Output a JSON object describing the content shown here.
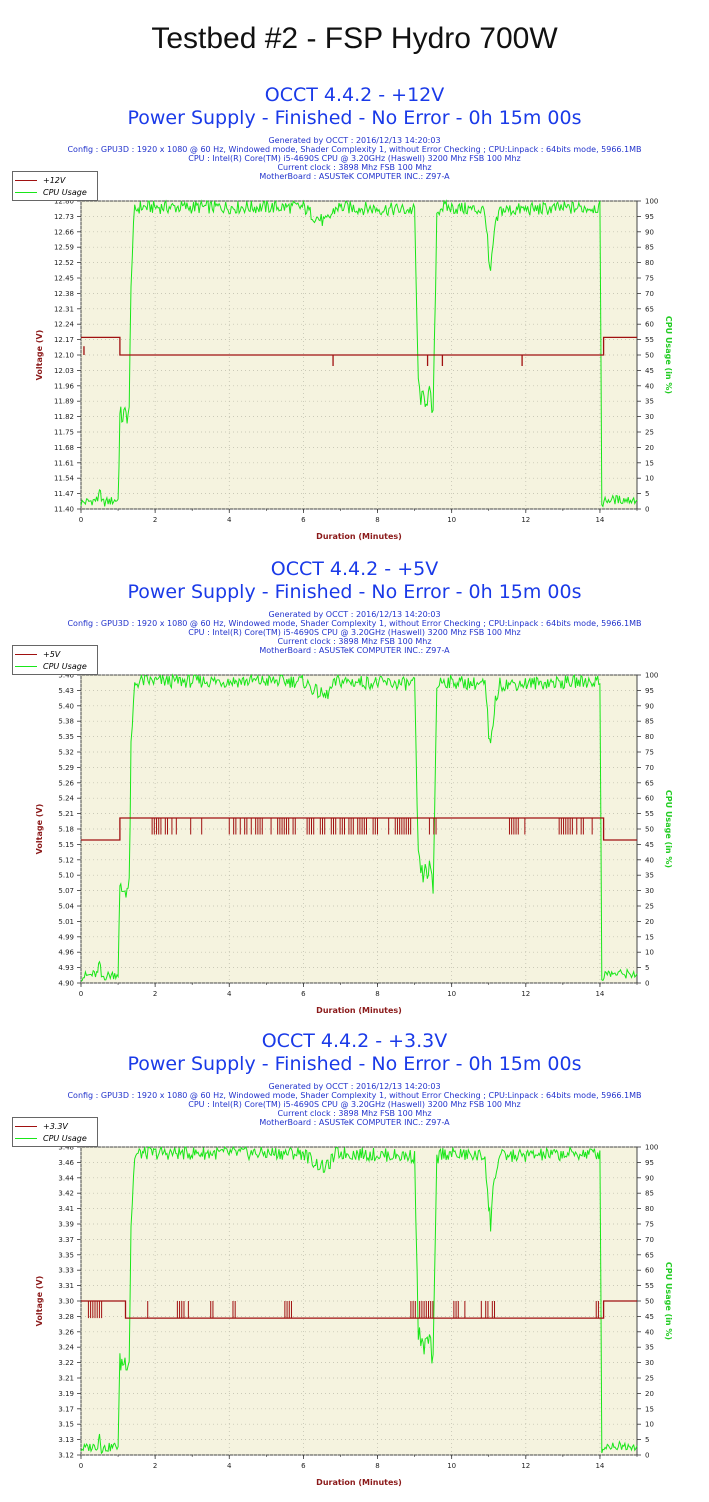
{
  "page_title": "Testbed #2 - FSP Hydro 700W",
  "colors": {
    "voltage": "#a01010",
    "cpu": "#19e619",
    "plot_bg": "#f5f3df",
    "title": "#1a3ae8",
    "info": "#2233cc"
  },
  "chart_data": [
    {
      "type": "line",
      "title": "OCCT 4.4.2 - +12V",
      "subtitle": "Power Supply - Finished - No Error - 0h 15m 00s",
      "info": [
        "Generated by OCCT : 2016/12/13 14:20:03",
        "Config : GPU3D : 1920 x 1080 @ 60 Hz, Windowed mode, Shader Complexity 1, without Error Checking ; CPU:Linpack : 64bits mode, 5966.1MB",
        "CPU : Intel(R) Core(TM) i5-4690S CPU @ 3.20GHz (Haswell) 3200 Mhz FSB 100 Mhz",
        "Current clock : 3898 Mhz FSB 100 Mhz",
        "MotherBoard : ASUSTeK COMPUTER INC.: Z97-A"
      ],
      "legend": [
        "+12V",
        "CPU Usage"
      ],
      "xlabel": "Duration (Minutes)",
      "ylabel": "Voltage (V)",
      "y2label": "CPU Usage (in %)",
      "xlim": [
        0,
        15
      ],
      "xticks": [
        "0",
        "2",
        "4",
        "6",
        "8",
        "10",
        "12",
        "14"
      ],
      "ylim": [
        11.4,
        12.8
      ],
      "yticks": [
        "12.80",
        "12.73",
        "12.66",
        "12.59",
        "12.52",
        "12.45",
        "12.38",
        "12.31",
        "12.24",
        "12.17",
        "12.10",
        "12.03",
        "11.96",
        "11.89",
        "11.82",
        "11.75",
        "11.68",
        "11.61",
        "11.54",
        "11.47",
        "11.40"
      ],
      "y2lim": [
        0,
        100
      ],
      "y2ticks": [
        "100",
        "95",
        "90",
        "85",
        "80",
        "75",
        "70",
        "65",
        "60",
        "55",
        "50",
        "45",
        "40",
        "35",
        "30",
        "25",
        "20",
        "15",
        "10",
        "5",
        "0"
      ],
      "series": [
        {
          "name": "+12V",
          "axis": "left",
          "x": [
            0,
            1.05,
            1.05,
            14.1,
            14.1,
            15
          ],
          "y": [
            12.18,
            12.18,
            12.1,
            12.1,
            12.18,
            12.18
          ],
          "spikes": [
            {
              "x": 0.08,
              "y": 12.14
            },
            {
              "x": 6.8,
              "y": 12.05
            },
            {
              "x": 9.35,
              "y": 12.05
            },
            {
              "x": 9.75,
              "y": 12.05
            },
            {
              "x": 11.9,
              "y": 12.05
            }
          ]
        },
        {
          "name": "CPU Usage",
          "axis": "right",
          "x": [
            0,
            0.45,
            0.5,
            0.55,
            1.0,
            1.05,
            1.1,
            1.3,
            1.35,
            1.45,
            1.6,
            6.0,
            6.3,
            6.6,
            6.9,
            9.0,
            9.1,
            9.2,
            9.4,
            9.5,
            9.6,
            9.7,
            10.9,
            11.0,
            11.05,
            11.15,
            11.3,
            14.0,
            14.05,
            14.2,
            15
          ],
          "y": [
            2,
            3,
            7,
            2,
            3,
            30,
            30,
            31,
            75,
            97,
            98,
            98,
            95,
            93,
            98,
            97,
            40,
            35,
            37,
            30,
            96,
            98,
            97,
            80,
            75,
            90,
            97,
            98,
            2,
            3,
            3
          ]
        }
      ]
    },
    {
      "type": "line",
      "title": "OCCT 4.4.2 - +5V",
      "subtitle": "Power Supply - Finished - No Error - 0h 15m 00s",
      "info": [
        "Generated by OCCT : 2016/12/13 14:20:03",
        "Config : GPU3D : 1920 x 1080 @ 60 Hz, Windowed mode, Shader Complexity 1, without Error Checking ; CPU:Linpack : 64bits mode, 5966.1MB",
        "CPU : Intel(R) Core(TM) i5-4690S CPU @ 3.20GHz (Haswell) 3200 Mhz FSB 100 Mhz",
        "Current clock : 3898 Mhz FSB 100 Mhz",
        "MotherBoard : ASUSTeK COMPUTER INC.: Z97-A"
      ],
      "legend": [
        "+5V",
        "CPU Usage"
      ],
      "xlabel": "Duration (Minutes)",
      "ylabel": "Voltage (V)",
      "y2label": "CPU Usage (in %)",
      "xlim": [
        0,
        15
      ],
      "xticks": [
        "0",
        "2",
        "4",
        "6",
        "8",
        "10",
        "12",
        "14"
      ],
      "ylim": [
        4.9,
        5.46
      ],
      "yticks": [
        "5.46",
        "5.43",
        "5.40",
        "5.38",
        "5.35",
        "5.32",
        "5.29",
        "5.26",
        "5.24",
        "5.21",
        "5.18",
        "5.15",
        "5.12",
        "5.10",
        "5.07",
        "5.04",
        "5.01",
        "4.99",
        "4.96",
        "4.93",
        "4.90"
      ],
      "y2lim": [
        0,
        100
      ],
      "y2ticks": [
        "100",
        "95",
        "90",
        "85",
        "80",
        "75",
        "70",
        "65",
        "60",
        "55",
        "50",
        "45",
        "40",
        "35",
        "30",
        "25",
        "20",
        "15",
        "10",
        "5",
        "0"
      ],
      "series": [
        {
          "name": "+5V",
          "axis": "left",
          "x": [
            0,
            1.05,
            1.05,
            14.1,
            14.1,
            15
          ],
          "y": [
            5.16,
            5.16,
            5.2,
            5.2,
            5.16,
            5.16
          ],
          "toggle": {
            "low": 5.17,
            "high": 5.2,
            "ranges": [
              [
                1.8,
                2.6
              ],
              [
                2.9,
                3.3
              ],
              [
                4.0,
                5.8
              ],
              [
                6.1,
                8.0
              ],
              [
                8.3,
                8.9
              ],
              [
                9.4,
                9.8
              ],
              [
                11.5,
                12.1
              ],
              [
                12.9,
                13.8
              ]
            ]
          }
        },
        {
          "name": "CPU Usage",
          "axis": "right",
          "x": [
            0,
            0.45,
            0.5,
            0.55,
            1.0,
            1.05,
            1.1,
            1.3,
            1.35,
            1.45,
            1.6,
            6.0,
            6.3,
            6.6,
            6.9,
            9.0,
            9.1,
            9.2,
            9.4,
            9.5,
            9.6,
            9.7,
            10.9,
            11.0,
            11.05,
            11.15,
            11.3,
            14.0,
            14.05,
            14.2,
            15
          ],
          "y": [
            2,
            3,
            7,
            2,
            3,
            30,
            30,
            31,
            75,
            97,
            98,
            98,
            95,
            93,
            98,
            97,
            40,
            35,
            37,
            30,
            96,
            98,
            97,
            80,
            75,
            90,
            97,
            98,
            2,
            3,
            3
          ]
        }
      ]
    },
    {
      "type": "line",
      "title": "OCCT 4.4.2 - +3.3V",
      "subtitle": "Power Supply - Finished - No Error - 0h 15m 00s",
      "info": [
        "Generated by OCCT : 2016/12/13 14:20:03",
        "Config : GPU3D : 1920 x 1080 @ 60 Hz, Windowed mode, Shader Complexity 1, without Error Checking ; CPU:Linpack : 64bits mode, 5966.1MB",
        "CPU : Intel(R) Core(TM) i5-4690S CPU @ 3.20GHz (Haswell) 3200 Mhz FSB 100 Mhz",
        "Current clock : 3898 Mhz FSB 100 Mhz",
        "MotherBoard : ASUSTeK COMPUTER INC.: Z97-A"
      ],
      "legend": [
        "+3.3V",
        "CPU Usage"
      ],
      "xlabel": "Duration (Minutes)",
      "ylabel": "Voltage (V)",
      "y2label": "CPU Usage (in %)",
      "xlim": [
        0,
        15
      ],
      "xticks": [
        "0",
        "2",
        "4",
        "6",
        "8",
        "10",
        "12",
        "14"
      ],
      "ylim": [
        3.12,
        3.48
      ],
      "yticks": [
        "3.48",
        "3.46",
        "3.44",
        "3.42",
        "3.41",
        "3.39",
        "3.37",
        "3.35",
        "3.33",
        "3.31",
        "3.30",
        "3.28",
        "3.26",
        "3.24",
        "3.22",
        "3.21",
        "3.19",
        "3.17",
        "3.15",
        "3.13",
        "3.12"
      ],
      "y2lim": [
        0,
        100
      ],
      "y2ticks": [
        "100",
        "95",
        "90",
        "85",
        "80",
        "75",
        "70",
        "65",
        "60",
        "55",
        "50",
        "45",
        "40",
        "35",
        "30",
        "25",
        "20",
        "15",
        "10",
        "5",
        "0"
      ],
      "series": [
        {
          "name": "+3.3V",
          "axis": "left",
          "x": [
            0,
            1.2,
            1.2,
            14.1,
            14.1,
            15
          ],
          "y": [
            3.3,
            3.3,
            3.28,
            3.28,
            3.3,
            3.3
          ],
          "toggle": {
            "low": 3.28,
            "high": 3.3,
            "ranges": [
              [
                0.2,
                0.6
              ],
              [
                1.8,
                2.0
              ],
              [
                2.6,
                2.9
              ],
              [
                3.5,
                3.6
              ],
              [
                4.1,
                4.2
              ],
              [
                5.5,
                5.7
              ],
              [
                8.3,
                8.5
              ],
              [
                8.9,
                9.5
              ],
              [
                10.0,
                10.5
              ],
              [
                10.8,
                11.2
              ],
              [
                13.9,
                14.0
              ]
            ]
          }
        },
        {
          "name": "CPU Usage",
          "axis": "right",
          "x": [
            0,
            0.45,
            0.5,
            0.55,
            1.0,
            1.05,
            1.1,
            1.3,
            1.35,
            1.45,
            1.6,
            6.0,
            6.3,
            6.6,
            6.9,
            9.0,
            9.1,
            9.2,
            9.4,
            9.5,
            9.6,
            9.7,
            10.9,
            11.0,
            11.05,
            11.15,
            11.3,
            14.0,
            14.05,
            14.2,
            15
          ],
          "y": [
            2,
            3,
            7,
            2,
            3,
            30,
            30,
            31,
            75,
            97,
            98,
            98,
            95,
            93,
            98,
            97,
            40,
            35,
            37,
            30,
            96,
            98,
            97,
            80,
            75,
            90,
            97,
            98,
            2,
            3,
            3
          ]
        }
      ]
    }
  ]
}
